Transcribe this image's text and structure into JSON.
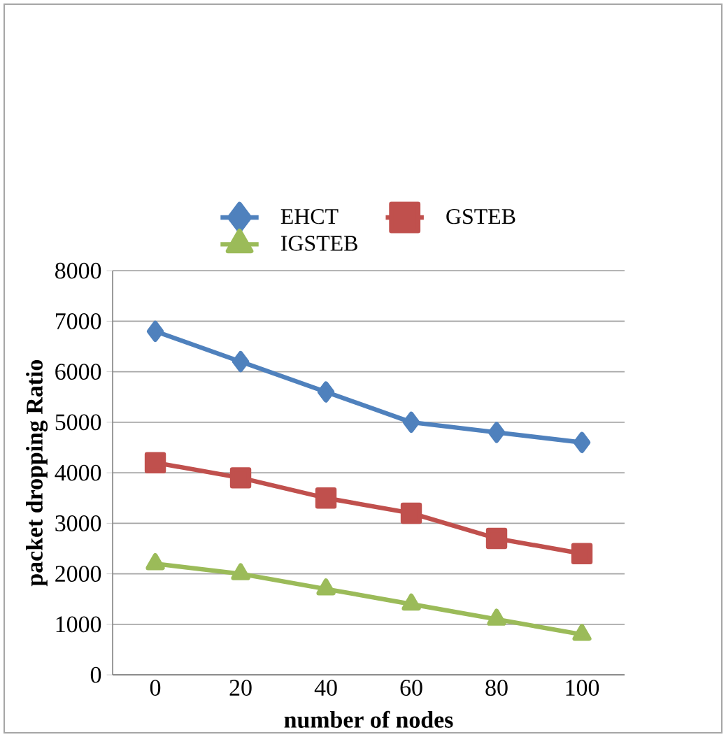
{
  "chart_data": {
    "type": "line",
    "xlabel": "number of nodes",
    "ylabel": "packet dropping Ratio",
    "categories": [
      "0",
      "20",
      "40",
      "60",
      "80",
      "100"
    ],
    "ylim": [
      0,
      8000
    ],
    "yticks": [
      0,
      1000,
      2000,
      3000,
      4000,
      5000,
      6000,
      7000,
      8000
    ],
    "grid": "y",
    "legend": "top",
    "line_style": "solid",
    "series": [
      {
        "name": "EHCT",
        "color": "#4f81bd",
        "marker": "diamond",
        "values": [
          6800,
          6200,
          5600,
          5000,
          4800,
          4600
        ]
      },
      {
        "name": "GSTEB",
        "color": "#c0504d",
        "marker": "square",
        "values": [
          4200,
          3900,
          3500,
          3200,
          2700,
          2400
        ]
      },
      {
        "name": "IGSTEB",
        "color": "#9bbb59",
        "marker": "triangle",
        "values": [
          2200,
          2000,
          1700,
          1400,
          1100,
          800
        ]
      }
    ]
  }
}
